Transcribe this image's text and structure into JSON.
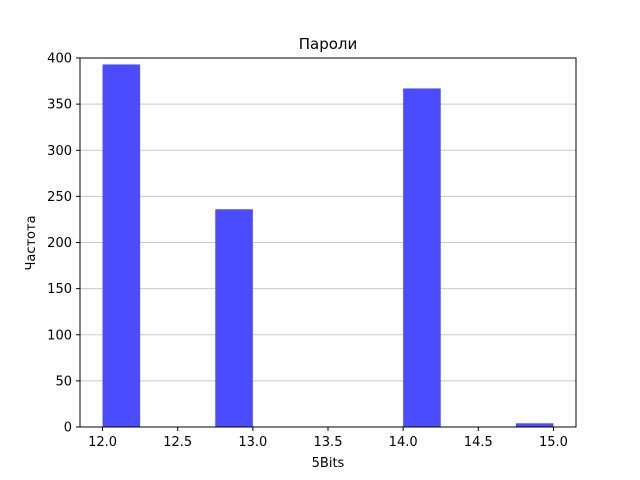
{
  "chart_data": {
    "type": "bar",
    "title": "Пароли",
    "xlabel": "5Bits",
    "ylabel": "Частота",
    "xlim": [
      11.85,
      15.15
    ],
    "ylim": [
      0,
      400
    ],
    "xticks": [
      "12.0",
      "12.5",
      "13.0",
      "13.5",
      "14.0",
      "14.5",
      "15.0"
    ],
    "yticks": [
      "0",
      "50",
      "100",
      "150",
      "200",
      "250",
      "300",
      "350",
      "400"
    ],
    "bins": [
      {
        "x0": 12.0,
        "x1": 12.25,
        "value": 393
      },
      {
        "x0": 12.25,
        "x1": 12.5,
        "value": 0
      },
      {
        "x0": 12.5,
        "x1": 12.75,
        "value": 0
      },
      {
        "x0": 12.75,
        "x1": 13.0,
        "value": 236
      },
      {
        "x0": 13.0,
        "x1": 13.25,
        "value": 0
      },
      {
        "x0": 13.25,
        "x1": 13.5,
        "value": 0
      },
      {
        "x0": 13.5,
        "x1": 13.75,
        "value": 0
      },
      {
        "x0": 13.75,
        "x1": 14.0,
        "value": 0
      },
      {
        "x0": 14.0,
        "x1": 14.25,
        "value": 367
      },
      {
        "x0": 14.25,
        "x1": 14.5,
        "value": 0
      },
      {
        "x0": 14.5,
        "x1": 14.75,
        "value": 0
      },
      {
        "x0": 14.75,
        "x1": 15.0,
        "value": 4
      }
    ],
    "grid": "y",
    "colors": {
      "bar": "#4b4bff",
      "grid": "#c8c8c8",
      "axis": "#000000"
    }
  }
}
